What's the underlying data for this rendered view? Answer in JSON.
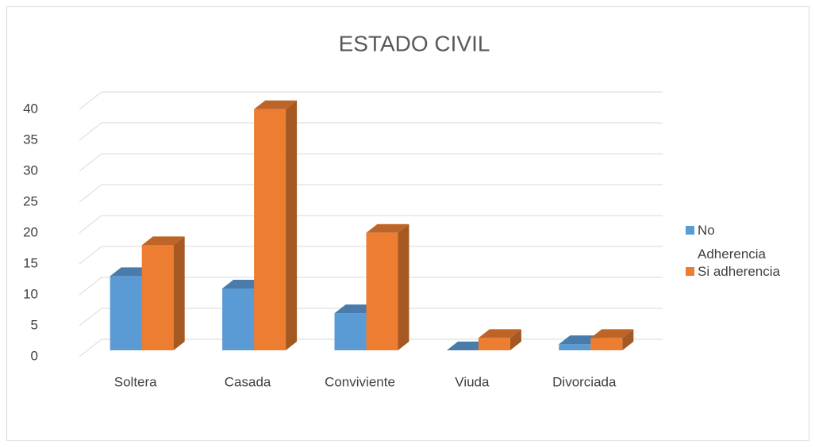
{
  "chart_data": {
    "type": "bar3d",
    "title": "ESTADO CIVIL",
    "categories": [
      "Soltera",
      "Casada",
      "Conviviente",
      "Viuda",
      "Divorciada"
    ],
    "series": [
      {
        "name": "No Adherencia",
        "color": "#5b9bd5",
        "values": [
          12,
          10,
          6,
          0,
          1
        ]
      },
      {
        "name": "Si adherencia",
        "color": "#ed7d31",
        "values": [
          17,
          39,
          19,
          2,
          2
        ]
      }
    ],
    "ylim": [
      0,
      40
    ],
    "yticks": [
      0,
      5,
      10,
      15,
      20,
      25,
      30,
      35,
      40
    ],
    "grid": true,
    "legend": "right"
  }
}
